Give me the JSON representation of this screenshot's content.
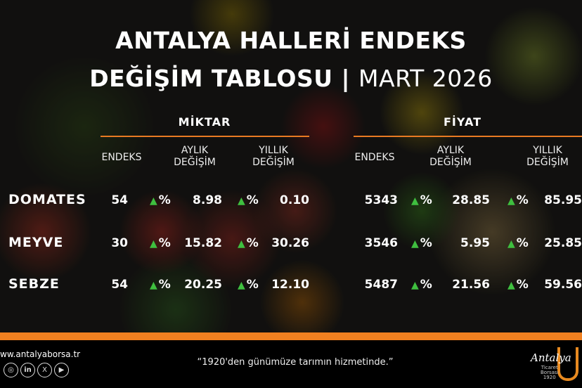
{
  "title": {
    "line1": "ANTALYA HALLERİ ENDEKS",
    "line2_bold": "DEĞİŞİM TABLOSU | ",
    "line2_light": "MART 2026"
  },
  "sections": {
    "miktar": "MİKTAR",
    "fiyat": "FİYAT"
  },
  "headers": {
    "endeks": "ENDEKS",
    "aylik": "AYLIK",
    "yillik": "YILLIK",
    "degisim": "DEĞİŞİM"
  },
  "percent": "%",
  "rows": [
    {
      "label": "DOMATES",
      "miktar_endeks": "54",
      "miktar_aylik": "8.98",
      "miktar_yillik": "0.10",
      "fiyat_endeks": "5343",
      "fiyat_aylik": "28.85",
      "fiyat_yillik": "85.95"
    },
    {
      "label": "MEYVE",
      "miktar_endeks": "30",
      "miktar_aylik": "15.82",
      "miktar_yillik": "30.26",
      "fiyat_endeks": "3546",
      "fiyat_aylik": "5.95",
      "fiyat_yillik": "25.85"
    },
    {
      "label": "SEBZE",
      "miktar_endeks": "54",
      "miktar_aylik": "20.25",
      "miktar_yillik": "12.10",
      "fiyat_endeks": "5487",
      "fiyat_aylik": "21.56",
      "fiyat_yillik": "59.56"
    }
  ],
  "footer": {
    "website": "ww.antalyaborsa.tr",
    "slogan": "“1920'den günümüze tarımın hizmetinde.”",
    "logo_text": "Antalya Ticaret Borsası 1920",
    "social": [
      "instagram",
      "linkedin",
      "x",
      "youtube"
    ]
  },
  "colors": {
    "accent": "#f08020",
    "up": "#3fbf3f"
  }
}
